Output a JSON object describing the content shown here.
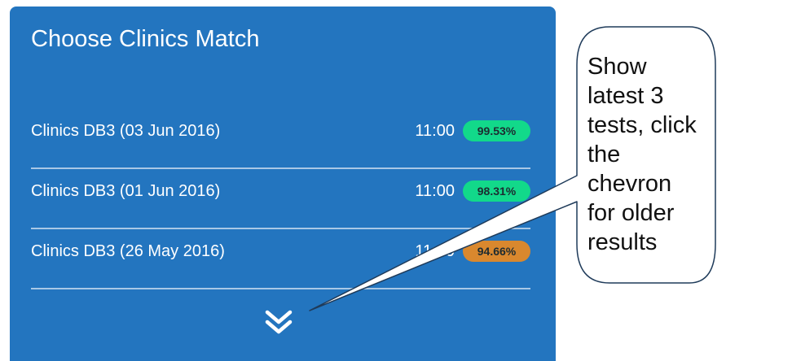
{
  "card": {
    "title": "Choose Clinics Match",
    "background": "#2375bf",
    "rows": [
      {
        "label": "Clinics DB3 (03 Jun 2016)",
        "time": "11:00",
        "score": "99.53%",
        "score_color": "#12d98a"
      },
      {
        "label": "Clinics DB3 (01 Jun 2016)",
        "time": "11:00",
        "score": "98.31%",
        "score_color": "#12d98a"
      },
      {
        "label": "Clinics DB3 (26 May 2016)",
        "time": "11:00",
        "score": "94.66%",
        "score_color": "#d9882e"
      }
    ],
    "more_icon": "double-chevron-down-icon"
  },
  "callout": {
    "text": "Show latest 3 tests, click the chevron for older results"
  }
}
